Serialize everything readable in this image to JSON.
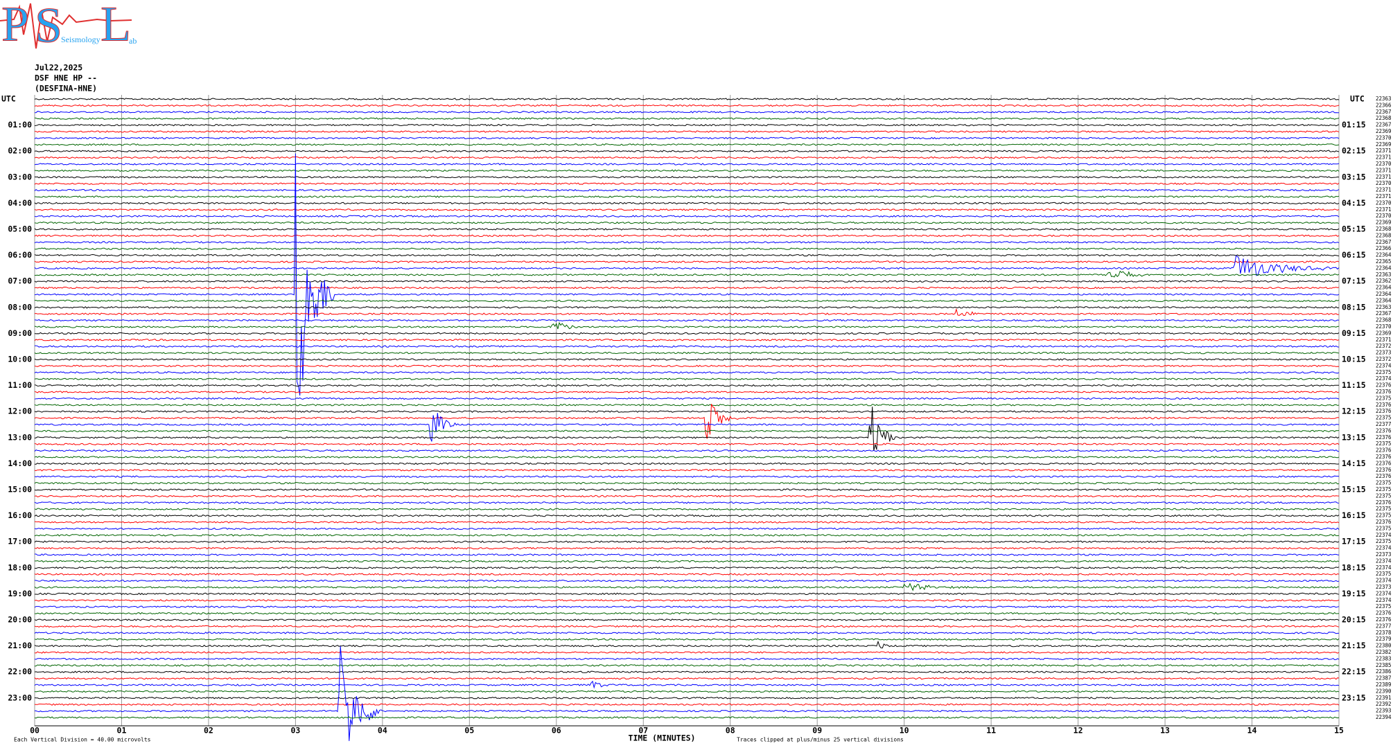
{
  "header": {
    "logo_letters": [
      "P",
      "S",
      "L"
    ],
    "logo_words": [
      "Seismology",
      "ab"
    ],
    "lines": [
      "Jul22,2025",
      "DSF HNE HP --",
      "(DESFINA-HNE)"
    ]
  },
  "left_axis": {
    "title": "UTC",
    "labels": [
      "01:00",
      "02:00",
      "03:00",
      "04:00",
      "05:00",
      "06:00",
      "07:00",
      "08:00",
      "09:00",
      "10:00",
      "11:00",
      "12:00",
      "13:00",
      "14:00",
      "15:00",
      "16:00",
      "17:00",
      "18:00",
      "19:00",
      "20:00",
      "21:00",
      "22:00",
      "23:00"
    ]
  },
  "right_axis": {
    "title": "UTC",
    "labels": [
      "01:15",
      "02:15",
      "03:15",
      "04:15",
      "05:15",
      "06:15",
      "07:15",
      "08:15",
      "09:15",
      "10:15",
      "11:15",
      "12:15",
      "13:15",
      "14:15",
      "15:15",
      "16:15",
      "17:15",
      "18:15",
      "19:15",
      "20:15",
      "21:15",
      "22:15",
      "23:15"
    ]
  },
  "trace_counts": [
    22363,
    22366,
    22367,
    22368,
    22367,
    22369,
    22370,
    22369,
    22371,
    22371,
    22370,
    22371,
    22371,
    22370,
    22371,
    22371,
    22370,
    22371,
    22370,
    22369,
    22368,
    22368,
    22367,
    22366,
    22364,
    22365,
    22364,
    22363,
    22362,
    22364,
    22364,
    22364,
    22363,
    22367,
    22368,
    22370,
    22369,
    22371,
    22372,
    22373,
    22372,
    22374,
    22375,
    22374,
    22376,
    22376,
    22375,
    22376,
    22376,
    22375,
    22377,
    22376,
    22376,
    22375,
    22376,
    22376,
    22376,
    22376,
    22376,
    22375,
    22375,
    22375,
    22376,
    22375,
    22375,
    22376,
    22375,
    22374,
    22375,
    22374,
    22373,
    22374,
    22374,
    22375,
    22374,
    22373,
    22374,
    22374,
    22375,
    22376,
    22376,
    22377,
    22378,
    22379,
    22380,
    22382,
    22383,
    22385,
    22386,
    22387,
    22389,
    22390,
    22391,
    22392,
    22393,
    22394
  ],
  "trace_colors": [
    "#000000",
    "#ff0000",
    "#0000ff",
    "#006400"
  ],
  "x_axis": {
    "title": "TIME (MINUTES)",
    "ticks": [
      "00",
      "01",
      "02",
      "03",
      "04",
      "05",
      "06",
      "07",
      "08",
      "09",
      "10",
      "11",
      "12",
      "13",
      "14",
      "15"
    ]
  },
  "footer": {
    "scale_note": "Each Vertical Division =   40.00 microvolts",
    "clip_note": "Traces clipped at plus/minus 25 vertical divisions"
  }
}
